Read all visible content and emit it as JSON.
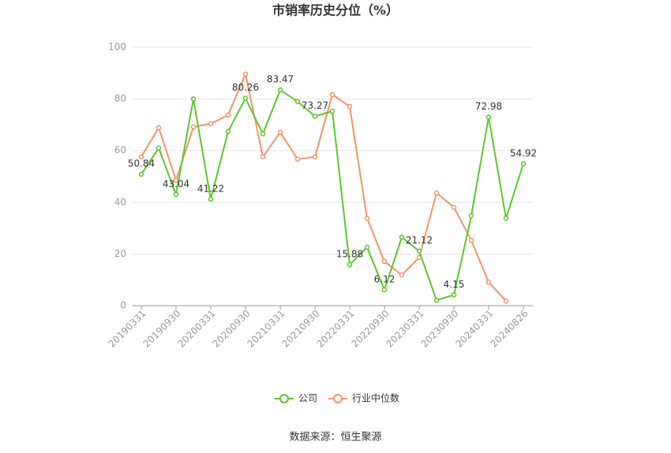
{
  "chart_data": {
    "type": "line",
    "title": "市销率历史分位（%）",
    "source": "数据来源：恒生聚源",
    "categories": [
      "20190331",
      null,
      "20190930",
      null,
      "20200331",
      null,
      "20200930",
      null,
      "20210331",
      null,
      "20210930",
      null,
      "20220331",
      null,
      "20220930",
      null,
      "20230331",
      null,
      "20230930",
      null,
      "20240331",
      null,
      "20240826"
    ],
    "series": [
      {
        "name": "公司",
        "color": "#5cc72a",
        "values": [
          50.84,
          61,
          43.04,
          80,
          41.22,
          67.4,
          80.26,
          66.5,
          83.47,
          79,
          73.27,
          75.3,
          15.88,
          22.6,
          6.12,
          26.5,
          21.12,
          2.1,
          4.15,
          34.8,
          72.98,
          33.8,
          54.92
        ],
        "value_labels": [
          "50.84",
          null,
          "43.04",
          null,
          "41.22",
          null,
          "80.26",
          null,
          "83.47",
          null,
          "73.27",
          null,
          "15.88",
          null,
          "6.12",
          null,
          "21.12",
          null,
          "4.15",
          null,
          "72.98",
          null,
          "54.92"
        ]
      },
      {
        "name": "行业中位数",
        "color": "#f4936a",
        "values": [
          57.6,
          68.9,
          48.5,
          69.2,
          70.4,
          73.8,
          89.6,
          57.6,
          67.1,
          56.7,
          57.6,
          81.7,
          77.1,
          33.8,
          17.1,
          11.9,
          18.6,
          43.6,
          38.1,
          25.3,
          9.1,
          1.8,
          null
        ]
      }
    ],
    "ylim": [
      0,
      100
    ],
    "yticks": [
      0,
      20,
      40,
      60,
      80,
      100
    ],
    "grid": true,
    "legend": "bottom"
  }
}
